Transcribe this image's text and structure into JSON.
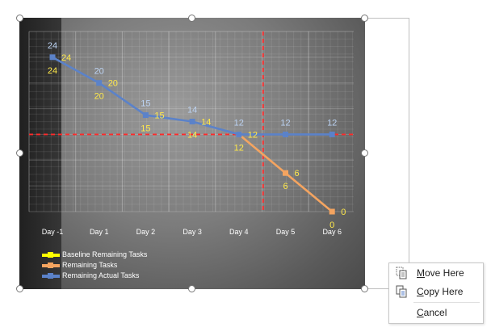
{
  "chart_data": {
    "type": "line",
    "categories": [
      "Day -1",
      "Day 1",
      "Day 2",
      "Day 3",
      "Day 4",
      "Day 5",
      "Day 6"
    ],
    "series": [
      {
        "name": "Baseline Remaining Tasks",
        "color": "#ffff00",
        "values": [
          24,
          20,
          15,
          14,
          12,
          null,
          null
        ]
      },
      {
        "name": "Remaining Tasks",
        "color": "#f4a460",
        "values": [
          null,
          null,
          null,
          null,
          12,
          6,
          0
        ]
      },
      {
        "name": "Remaining Actual Tasks",
        "color": "#5b82c9",
        "values": [
          24,
          20,
          15,
          14,
          12,
          12,
          12
        ]
      }
    ],
    "label_rows": {
      "blue": [
        "24",
        "20",
        "15",
        "14",
        "12",
        "12",
        "12"
      ],
      "yellow": [
        "24",
        "20",
        "15",
        "14",
        "12",
        "6",
        "0"
      ]
    },
    "ylim": [
      0,
      28
    ],
    "reference_lines": {
      "horizontal_value": 12,
      "vertical_category": "Day 4",
      "color": "#ff2a2a"
    },
    "grid": true,
    "legend_position": "bottom-left"
  },
  "context_menu": {
    "items": [
      {
        "label": "Move Here",
        "icon": "move-icon"
      },
      {
        "label": "Copy Here",
        "icon": "copy-icon"
      },
      {
        "label": "Cancel"
      }
    ]
  },
  "colors": {
    "accent_orange": "#f4a460",
    "accent_blue": "#5b82c9",
    "label_yellow": "#ffe94a",
    "reference_red": "#ff2a2a"
  }
}
